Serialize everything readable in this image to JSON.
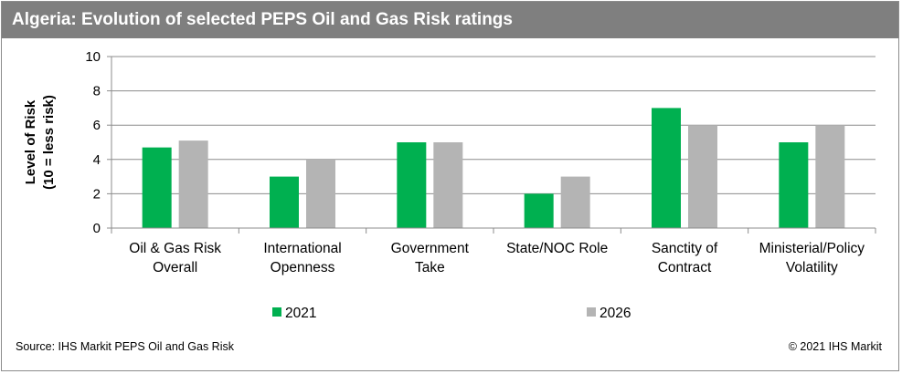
{
  "title": "Algeria: Evolution of selected PEPS Oil and Gas Risk ratings",
  "source": "Source: IHS Markit PEPS Oil and Gas Risk",
  "copyright": "© 2021 IHS Markit",
  "colors": {
    "2021": "#00b050",
    "2026": "#b4b4b4",
    "title_bg": "#7f7f7f"
  },
  "chart_data": {
    "type": "bar",
    "ylabel_lines": [
      "Level of Risk",
      "(10 = less risk)"
    ],
    "ylim": [
      0,
      10
    ],
    "yticks": [
      "0",
      "2",
      "4",
      "6",
      "8",
      "10"
    ],
    "grid": true,
    "legend_position": "bottom",
    "categories": [
      [
        "Oil & Gas Risk",
        "Overall"
      ],
      [
        "International",
        "Openness"
      ],
      [
        "Government",
        "Take"
      ],
      [
        "State/NOC Role"
      ],
      [
        "Sanctity of",
        "Contract"
      ],
      [
        "Ministerial/Policy",
        "Volatility"
      ]
    ],
    "series": [
      {
        "name": "2021",
        "values": [
          4.7,
          3.0,
          5.0,
          2.0,
          7.0,
          5.0
        ]
      },
      {
        "name": "2026",
        "values": [
          5.1,
          4.0,
          5.0,
          3.0,
          6.0,
          6.0
        ]
      }
    ]
  }
}
